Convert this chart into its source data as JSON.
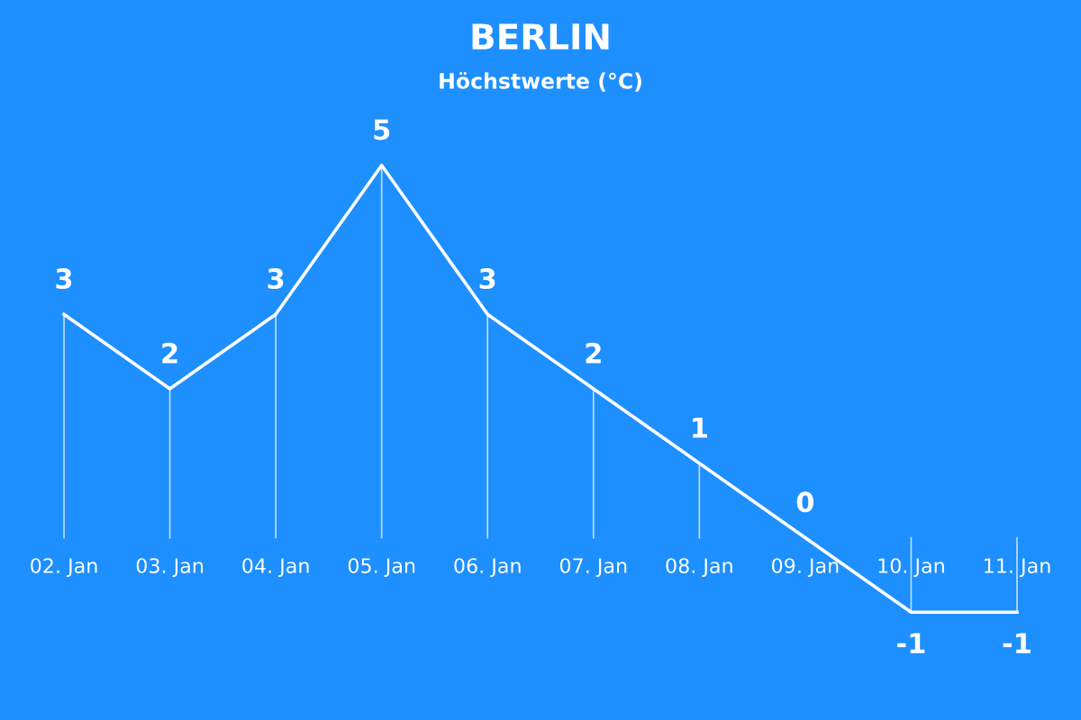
{
  "chart_data": {
    "type": "line",
    "title": "BERLIN",
    "subtitle": "Höchstwerte (°C)",
    "categories": [
      "02. Jan",
      "03. Jan",
      "04. Jan",
      "05. Jan",
      "06. Jan",
      "07. Jan",
      "08. Jan",
      "09. Jan",
      "10. Jan",
      "11. Jan"
    ],
    "series": [
      {
        "color": "#ffffff",
        "values": [
          3,
          2,
          3,
          5,
          3,
          2,
          1,
          0,
          -1,
          -1
        ]
      }
    ],
    "data_labels": true,
    "line_style": "solid"
  }
}
